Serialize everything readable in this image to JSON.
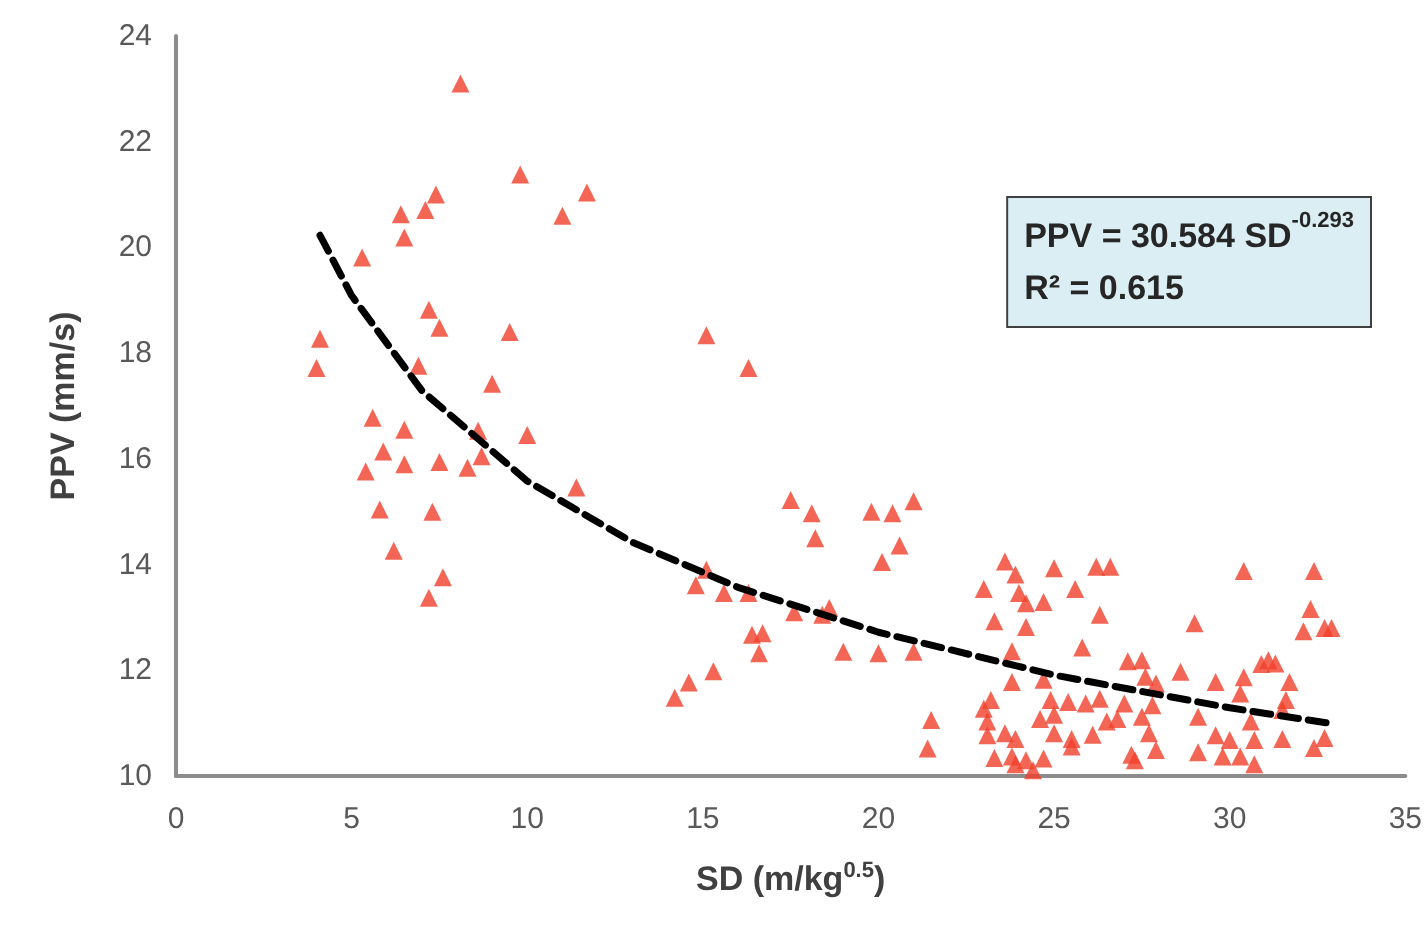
{
  "chart_data": {
    "type": "scatter",
    "xlabel": "SD (m/kg$^{0.5}$)",
    "ylabel": "PPV (mm/s)",
    "annotations": [
      "PPV = 30.584 SD$^{-0.293}$",
      "R² = 0.615"
    ],
    "xlim": [
      0,
      35
    ],
    "xticks": [
      0,
      5,
      10,
      15,
      20,
      25,
      30,
      35
    ],
    "ylim": [
      10,
      24
    ],
    "yticks": [
      10,
      12,
      14,
      16,
      18,
      20,
      22,
      24
    ],
    "grid": false,
    "series": [
      {
        "marker": "triangle",
        "color": "#f0402a",
        "x": [
          8.1,
          9.8,
          7.4,
          11.7,
          7.1,
          6.4,
          11.0,
          6.5,
          5.3,
          7.2,
          7.5,
          9.5,
          4.1,
          4.0,
          6.9,
          9.0,
          5.6,
          6.5,
          8.6,
          10.0,
          5.9,
          8.7,
          5.4,
          6.5,
          7.5,
          8.3,
          11.4,
          5.8,
          7.3,
          6.2,
          7.6,
          7.2,
          15.1,
          16.3,
          17.5,
          18.1,
          18.2,
          19.8,
          20.4,
          21.0,
          20.6,
          20.1,
          15.1,
          14.8,
          15.6,
          16.3,
          17.6,
          18.4,
          18.6,
          16.4,
          16.7,
          16.6,
          19.0,
          20.0,
          21.0,
          15.3,
          14.6,
          14.2,
          21.5,
          21.4,
          23.6,
          23.9,
          25.0,
          26.2,
          26.6,
          30.4,
          32.4,
          23.0,
          24.0,
          24.2,
          24.7,
          25.6,
          23.3,
          24.2,
          26.3,
          32.3,
          32.1,
          32.7,
          32.9,
          29.0,
          23.8,
          25.8,
          27.1,
          27.5,
          28.6,
          29.6,
          30.4,
          30.9,
          31.1,
          31.3,
          31.7,
          23.8,
          24.7,
          27.6,
          27.9,
          23.2,
          23.0,
          24.9,
          25.4,
          25.9,
          26.3,
          27.0,
          27.8,
          30.3,
          31.6,
          31.5,
          23.1,
          24.6,
          25.0,
          26.5,
          26.8,
          27.5,
          29.1,
          30.6,
          23.1,
          23.6,
          23.9,
          25.0,
          25.5,
          26.1,
          27.7,
          29.6,
          30.0,
          30.7,
          31.5,
          32.7,
          32.4,
          23.3,
          23.8,
          23.9,
          24.2,
          24.4,
          24.7,
          25.5,
          27.2,
          27.3,
          27.9,
          29.1,
          29.8,
          30.3,
          30.7
        ],
        "values": [
          23.1,
          21.38,
          21.0,
          21.04,
          20.71,
          20.63,
          20.6,
          20.19,
          19.81,
          18.82,
          18.48,
          18.4,
          18.27,
          17.72,
          17.76,
          17.42,
          16.78,
          16.55,
          16.53,
          16.45,
          16.14,
          16.05,
          15.76,
          15.9,
          15.94,
          15.83,
          15.46,
          15.04,
          15.0,
          14.26,
          13.76,
          13.37,
          18.34,
          17.72,
          15.22,
          14.97,
          14.5,
          15.0,
          14.97,
          15.2,
          14.36,
          14.05,
          13.9,
          13.61,
          13.46,
          13.46,
          13.1,
          13.05,
          13.18,
          12.67,
          12.7,
          12.32,
          12.35,
          12.32,
          12.35,
          11.98,
          11.77,
          11.48,
          11.06,
          10.52,
          14.06,
          13.81,
          13.93,
          13.96,
          13.96,
          13.88,
          13.88,
          13.54,
          13.46,
          13.27,
          13.29,
          13.54,
          12.93,
          12.82,
          13.05,
          13.16,
          12.74,
          12.8,
          12.8,
          12.89,
          12.36,
          12.43,
          12.17,
          12.19,
          11.97,
          11.78,
          11.87,
          12.12,
          12.19,
          12.13,
          11.78,
          11.78,
          11.82,
          11.88,
          11.75,
          11.44,
          11.27,
          11.44,
          11.4,
          11.37,
          11.46,
          11.37,
          11.34,
          11.56,
          11.44,
          11.25,
          11.03,
          11.08,
          11.16,
          11.03,
          11.08,
          11.12,
          11.12,
          11.03,
          10.77,
          10.81,
          10.7,
          10.81,
          10.7,
          10.78,
          10.81,
          10.77,
          10.68,
          10.68,
          10.7,
          10.72,
          10.53,
          10.34,
          10.37,
          10.22,
          10.3,
          10.11,
          10.33,
          10.56,
          10.4,
          10.3,
          10.49,
          10.45,
          10.37,
          10.37,
          10.22
        ]
      },
      {
        "type": "line",
        "marker": "none",
        "line_style": "dashed",
        "color": "#000000",
        "x": [
          4.1,
          5,
          7,
          10,
          13,
          16,
          20,
          25,
          30,
          33
        ],
        "values": [
          20.23,
          19.09,
          17.29,
          15.58,
          14.42,
          13.57,
          12.72,
          11.91,
          11.29,
          10.98
        ]
      }
    ]
  }
}
